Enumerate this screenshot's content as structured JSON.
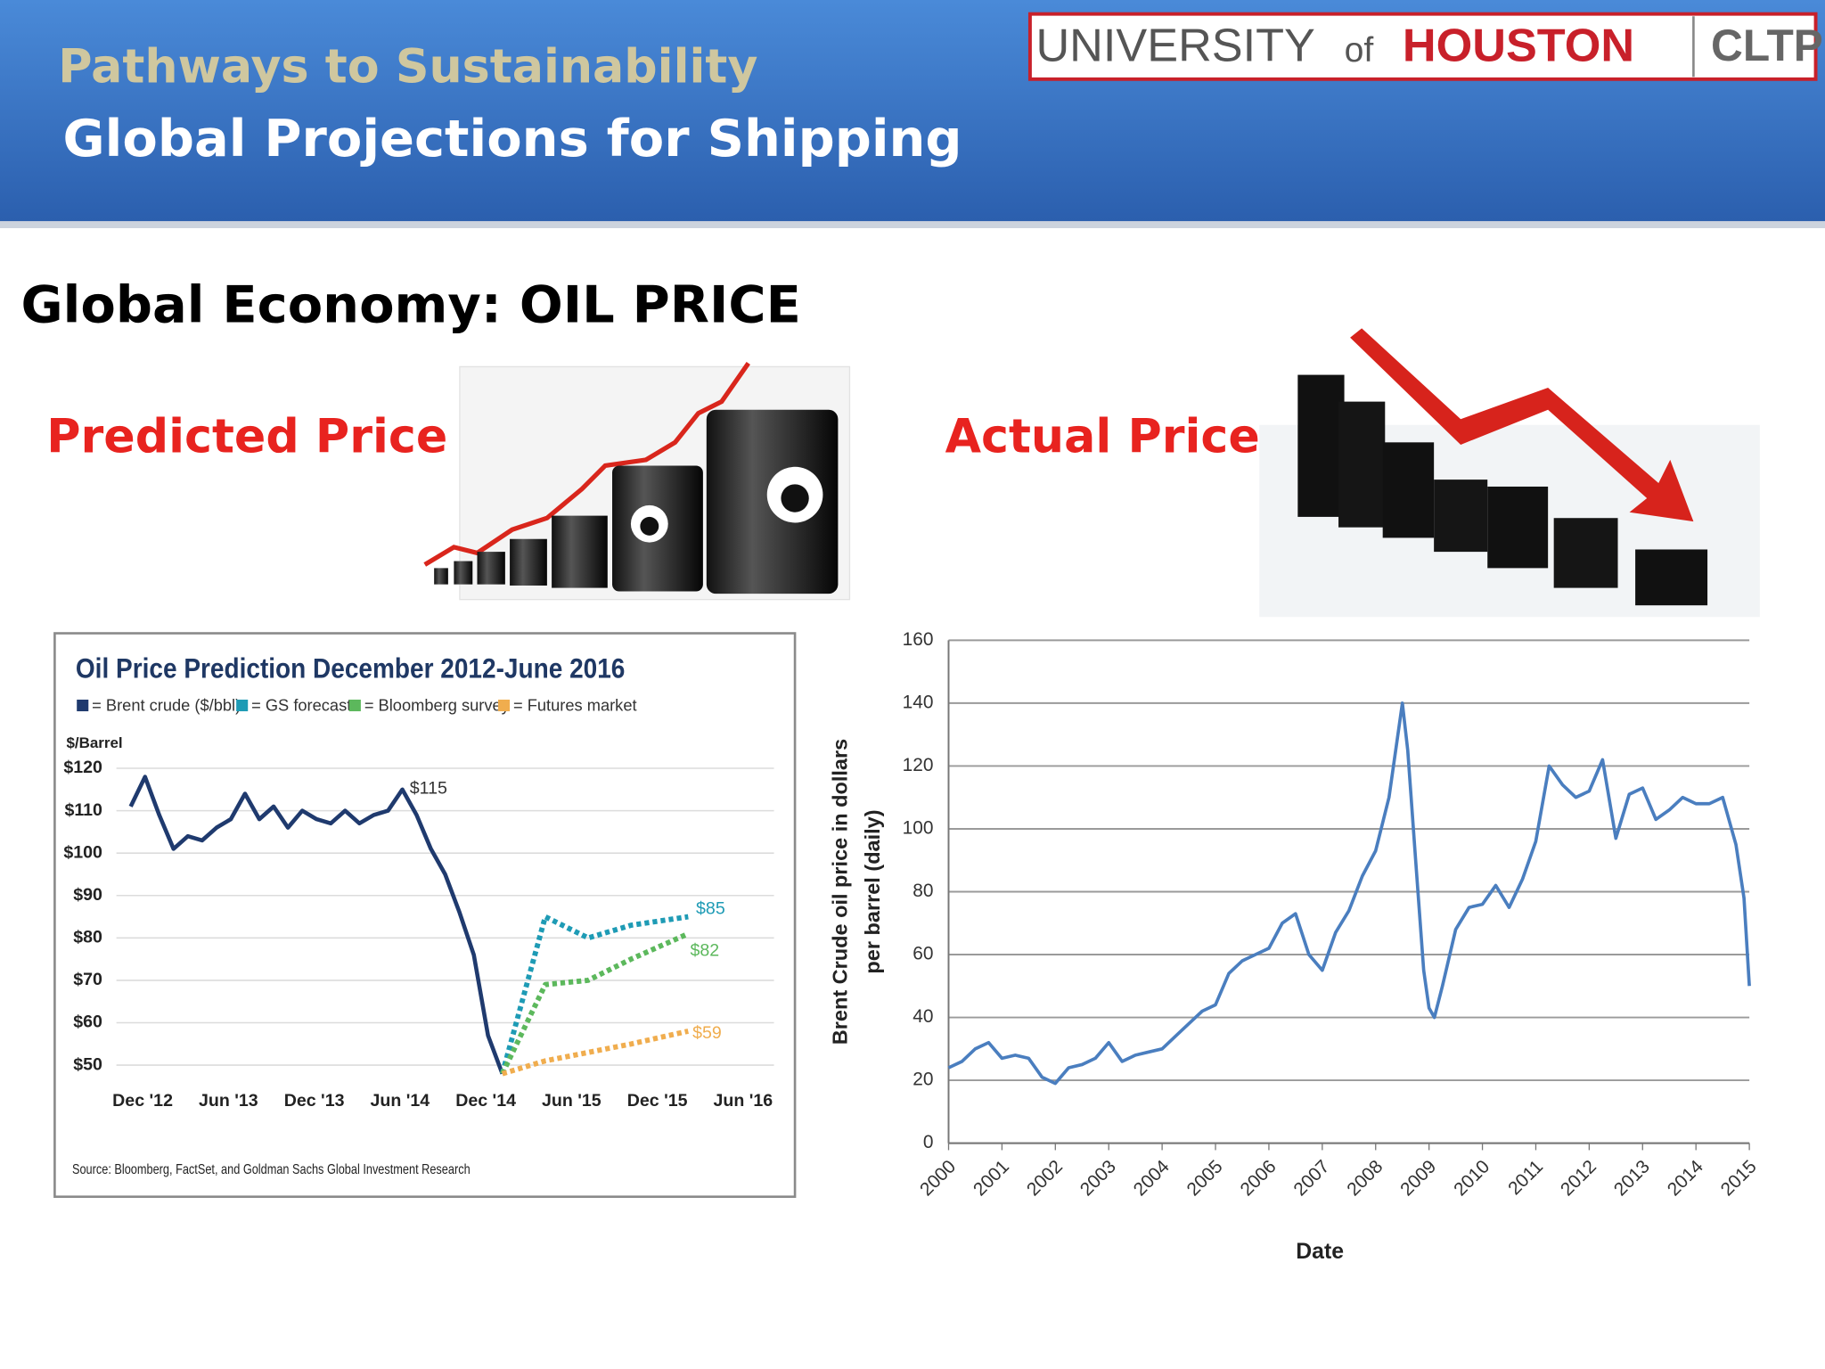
{
  "slide": {
    "header_title": "Pathways to Sustainability",
    "header_subtitle": "Global Projections for Shipping",
    "logo": {
      "university": "UNIVERSITY",
      "of": "of",
      "houston": "HOUSTON",
      "unit": "CLTP"
    },
    "heading": "Global Economy:  OIL PRICE",
    "left_label": "Predicted Price",
    "right_label": "Actual Price"
  },
  "chart_data": [
    {
      "type": "line",
      "title": "Oil Price Prediction December 2012-June 2016",
      "y_label": "$/Barrel",
      "source": "Source: Bloomberg, FactSet, and Goldman Sachs Global Investment Research",
      "xlim": [
        "2012-10",
        "2016-08"
      ],
      "xticks": [
        {
          "value": "2012-12",
          "label": "Dec '12"
        },
        {
          "value": "2013-06",
          "label": "Jun '13"
        },
        {
          "value": "2013-12",
          "label": "Dec '13"
        },
        {
          "value": "2014-06",
          "label": "Jun '14"
        },
        {
          "value": "2014-12",
          "label": "Dec '14"
        },
        {
          "value": "2015-06",
          "label": "Jun '15"
        },
        {
          "value": "2015-12",
          "label": "Dec '15"
        },
        {
          "value": "2016-06",
          "label": "Jun '16"
        }
      ],
      "ylim": [
        45,
        122
      ],
      "yticks": [
        {
          "value": 50,
          "label": "$50"
        },
        {
          "value": 60,
          "label": "$60"
        },
        {
          "value": 70,
          "label": "$70"
        },
        {
          "value": 80,
          "label": "$80"
        },
        {
          "value": 90,
          "label": "$90"
        },
        {
          "value": 100,
          "label": "$100"
        },
        {
          "value": 110,
          "label": "$110"
        },
        {
          "value": 120,
          "label": "$120"
        }
      ],
      "grid": true,
      "series": [
        {
          "name": "= Brent crude ($/bbl)",
          "color": "#1f3a6e",
          "style": "solid",
          "x": [
            "2012-11",
            "2012-12",
            "2013-01",
            "2013-02",
            "2013-03",
            "2013-04",
            "2013-05",
            "2013-06",
            "2013-07",
            "2013-08",
            "2013-09",
            "2013-10",
            "2013-11",
            "2013-12",
            "2014-01",
            "2014-02",
            "2014-03",
            "2014-04",
            "2014-05",
            "2014-06",
            "2014-07",
            "2014-08",
            "2014-09",
            "2014-10",
            "2014-11",
            "2014-12",
            "2015-01"
          ],
          "values": [
            111,
            118,
            109,
            101,
            104,
            103,
            106,
            108,
            114,
            108,
            111,
            106,
            110,
            108,
            107,
            110,
            107,
            109,
            110,
            115,
            109,
            101,
            95,
            86,
            76,
            57,
            48
          ]
        },
        {
          "name": "= GS forecast",
          "color": "#1e9bb5",
          "style": "dotted",
          "x": [
            "2015-01",
            "2015-04",
            "2015-07",
            "2015-10",
            "2016-02"
          ],
          "values": [
            48,
            85,
            80,
            83,
            85
          ]
        },
        {
          "name": "= Bloomberg survey",
          "color": "#5cb85c",
          "style": "dotted",
          "x": [
            "2015-01",
            "2015-04",
            "2015-07",
            "2015-10",
            "2016-02"
          ],
          "values": [
            48,
            69,
            70,
            75,
            81
          ]
        },
        {
          "name": "= Futures market",
          "color": "#f0ad4e",
          "style": "dotted",
          "x": [
            "2015-01",
            "2015-04",
            "2015-10",
            "2016-02"
          ],
          "values": [
            48,
            51,
            55,
            58
          ]
        }
      ],
      "annotations": [
        "$115",
        "$85",
        "$82",
        "$59"
      ]
    },
    {
      "type": "line",
      "y_label": [
        "Brent Crude oil price in dollars",
        "per barrel (daily)"
      ],
      "x_label": "Date",
      "xlim": [
        2000,
        2015
      ],
      "xticks": [
        2000,
        2001,
        2002,
        2003,
        2004,
        2005,
        2006,
        2007,
        2008,
        2009,
        2010,
        2011,
        2012,
        2013,
        2014,
        2015
      ],
      "ylim": [
        0,
        160
      ],
      "yticks": [
        0,
        20,
        40,
        60,
        80,
        100,
        120,
        140,
        160
      ],
      "grid": true,
      "series": [
        {
          "color": "#4a7ebf",
          "style": "solid",
          "x": [
            2000,
            2000.25,
            2000.5,
            2000.75,
            2001,
            2001.25,
            2001.5,
            2001.75,
            2002,
            2002.25,
            2002.5,
            2002.75,
            2003,
            2003.25,
            2003.5,
            2003.75,
            2004,
            2004.25,
            2004.5,
            2004.75,
            2005,
            2005.25,
            2005.5,
            2005.75,
            2006,
            2006.25,
            2006.5,
            2006.75,
            2007,
            2007.25,
            2007.5,
            2007.75,
            2008,
            2008.25,
            2008.5,
            2008.6,
            2008.75,
            2008.9,
            2009,
            2009.1,
            2009.25,
            2009.5,
            2009.75,
            2010,
            2010.25,
            2010.5,
            2010.75,
            2011,
            2011.25,
            2011.5,
            2011.75,
            2012,
            2012.25,
            2012.5,
            2012.75,
            2013,
            2013.25,
            2013.5,
            2013.75,
            2014,
            2014.25,
            2014.5,
            2014.75,
            2014.9,
            2015
          ],
          "values": [
            24,
            26,
            30,
            32,
            27,
            28,
            27,
            21,
            19,
            24,
            25,
            27,
            32,
            26,
            28,
            29,
            30,
            34,
            38,
            42,
            44,
            54,
            58,
            60,
            62,
            70,
            73,
            60,
            55,
            67,
            74,
            85,
            93,
            110,
            140,
            125,
            90,
            55,
            43,
            40,
            50,
            68,
            75,
            76,
            82,
            75,
            84,
            96,
            120,
            114,
            110,
            112,
            122,
            97,
            111,
            113,
            103,
            106,
            110,
            108,
            108,
            110,
            95,
            78,
            50
          ]
        }
      ]
    }
  ]
}
